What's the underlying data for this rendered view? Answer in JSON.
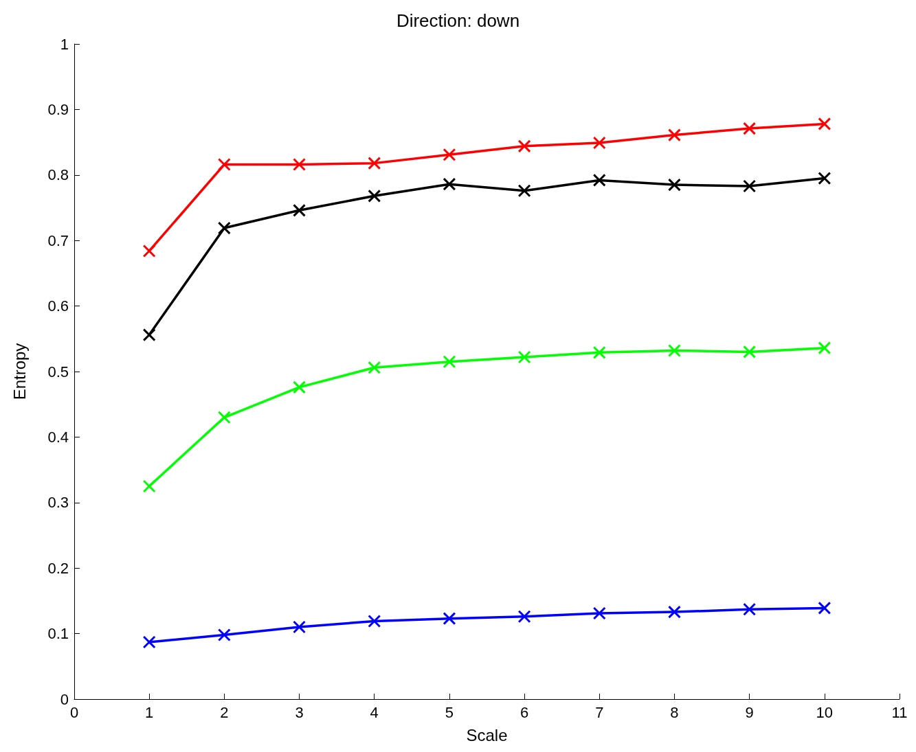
{
  "chart_data": {
    "type": "line",
    "title": "Direction: down",
    "xlabel": "Scale",
    "ylabel": "Entropy",
    "x": [
      1,
      2,
      3,
      4,
      5,
      6,
      7,
      8,
      9,
      10
    ],
    "series": [
      {
        "color": "#ff0000",
        "values": [
          0.684,
          0.816,
          0.816,
          0.818,
          0.831,
          0.844,
          0.849,
          0.861,
          0.871,
          0.878
        ]
      },
      {
        "color": "#000000",
        "values": [
          0.556,
          0.719,
          0.746,
          0.768,
          0.786,
          0.776,
          0.792,
          0.785,
          0.783,
          0.795
        ]
      },
      {
        "color": "#00ff00",
        "values": [
          0.325,
          0.43,
          0.476,
          0.506,
          0.515,
          0.522,
          0.529,
          0.532,
          0.53,
          0.536
        ]
      },
      {
        "color": "#0000ff",
        "values": [
          0.087,
          0.098,
          0.11,
          0.119,
          0.123,
          0.126,
          0.131,
          0.133,
          0.137,
          0.139
        ]
      }
    ],
    "xlim": [
      0,
      11
    ],
    "xticks": [
      0,
      1,
      2,
      3,
      4,
      5,
      6,
      7,
      8,
      9,
      10,
      11
    ],
    "ylim": [
      0,
      1
    ],
    "yticks": [
      0,
      0.1,
      0.2,
      0.3,
      0.4,
      0.5,
      0.6,
      0.7,
      0.8,
      0.9,
      1
    ],
    "grid": false,
    "marker": "cross",
    "line_style": "solid"
  }
}
